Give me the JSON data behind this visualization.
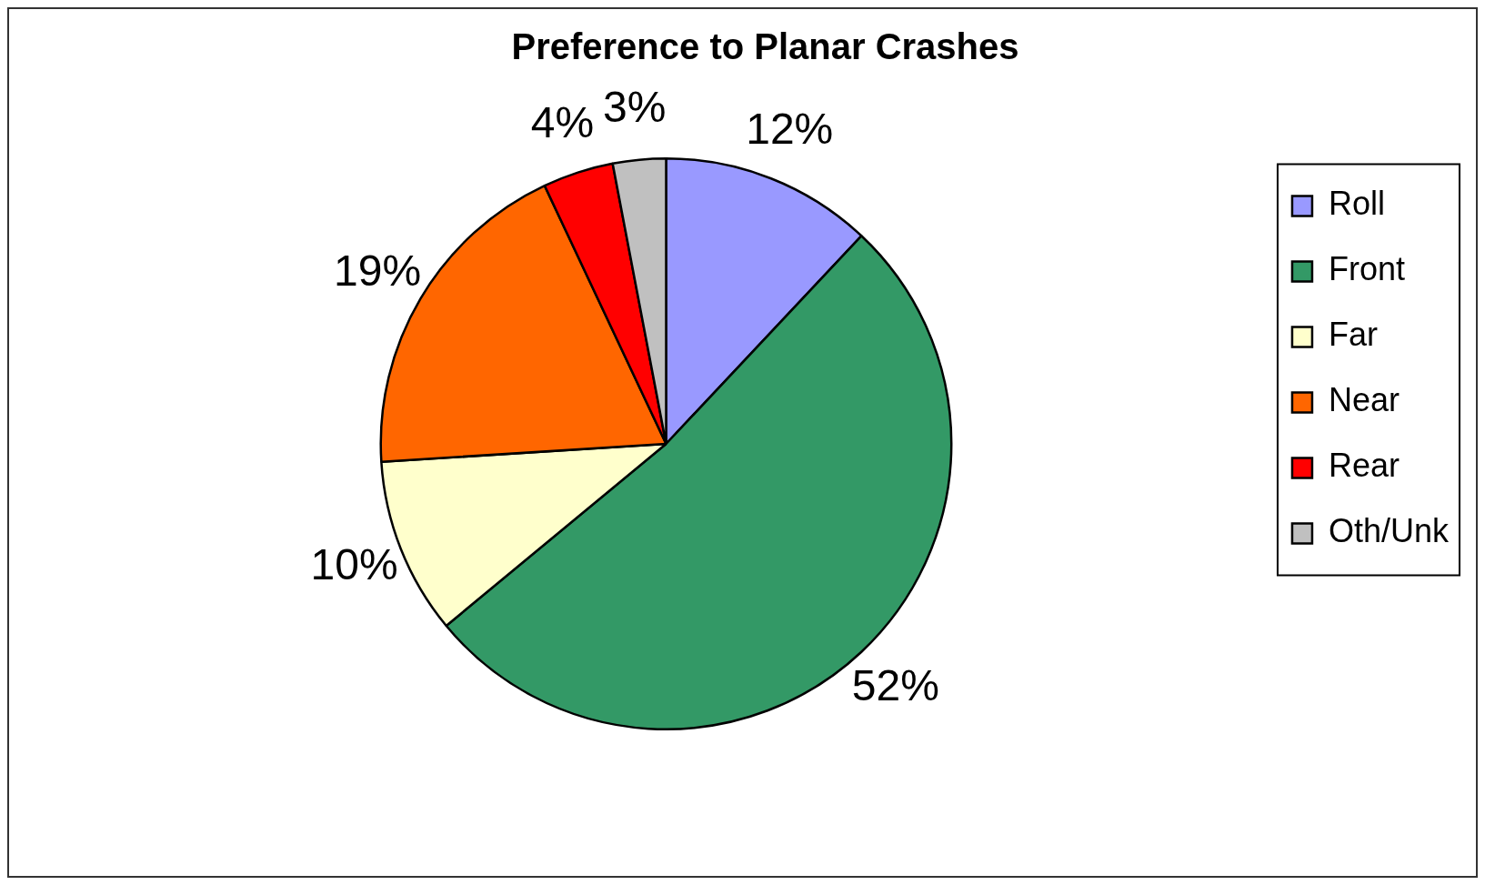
{
  "chart_data": {
    "type": "pie",
    "title": "Preference to Planar Crashes",
    "categories": [
      "Roll",
      "Front",
      "Far",
      "Near",
      "Rear",
      "Oth/Unk"
    ],
    "values": [
      12,
      52,
      10,
      19,
      4,
      3
    ],
    "value_labels": [
      "12%",
      "52%",
      "10%",
      "19%",
      "4%",
      "3%"
    ],
    "colors": [
      "#9999ff",
      "#339966",
      "#ffffcc",
      "#ff6600",
      "#ff0000",
      "#c0c0c0"
    ],
    "legend": "right"
  }
}
